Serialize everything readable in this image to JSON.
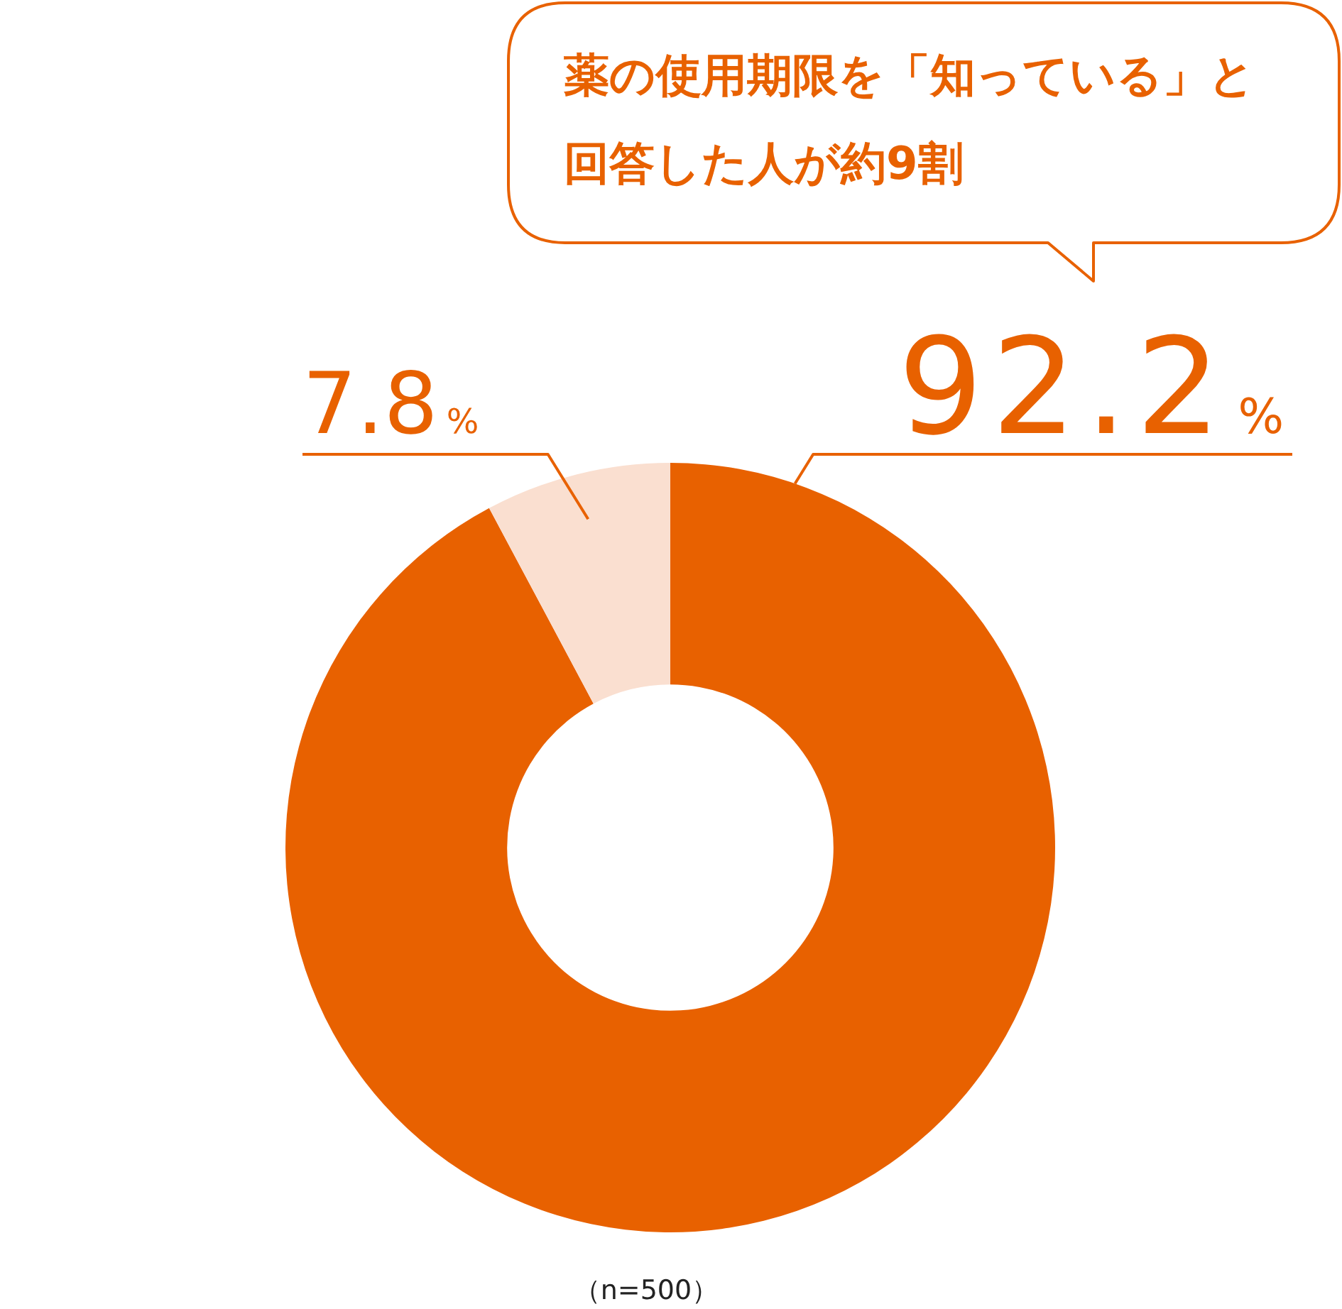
{
  "chart_data": {
    "type": "donut",
    "title": "薬の使用期限を「知っている」と回答した人が約9割",
    "categories": [
      null,
      null
    ],
    "values": [
      92.2,
      7.8
    ],
    "colors": [
      "#e86100",
      "#fadfd0"
    ],
    "value_labels": [
      "92.2%",
      "7.8%"
    ],
    "annotations": [
      "（n=500）"
    ],
    "legend": false
  }
}
